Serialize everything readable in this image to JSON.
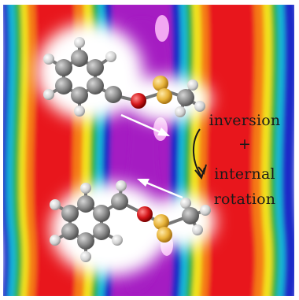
{
  "annotation": {
    "line1": "inversion",
    "plus": "+",
    "line3": "internal",
    "line4": "rotation"
  },
  "colors": {
    "field_red": "#e8161a",
    "field_orange": "#f57a14",
    "field_yellow": "#f2e21c",
    "field_green": "#2fb33c",
    "field_cyan": "#17b6d8",
    "field_blue": "#1b2cc8",
    "field_magenta": "#a51bc2",
    "carbon_atom": "#8c8c8c",
    "hydrogen_atom": "#d8d8d8",
    "oxygen_atom": "#d4161a",
    "sulfur_atom": "#e8b43a"
  },
  "icons": [
    "molecule-thioanisole-top",
    "molecule-thioanisole-bottom",
    "arrow-right-down",
    "arrow-left-up",
    "curved-arrow"
  ]
}
